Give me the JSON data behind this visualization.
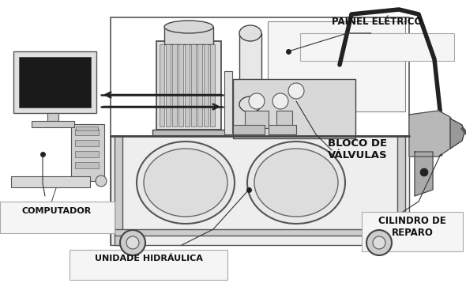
{
  "background_color": "#ffffff",
  "labels": {
    "painel_eletrico": "PAINEL ELÉTRICO",
    "bloco_de_valvulas": "BLOCO DE\nVÁLVULAS",
    "computador": "COMPUTADOR",
    "unidade_hidraulica": "UNIDADE HIDRÁULICA",
    "cilindro_de_reparo": "CILINDRO DE\nREPARO"
  },
  "figsize": [
    5.9,
    3.58
  ],
  "dpi": 100,
  "line_color": "#333333",
  "label_color": "#111111",
  "label_fontsize": 8.0,
  "label_fontweight": "bold"
}
